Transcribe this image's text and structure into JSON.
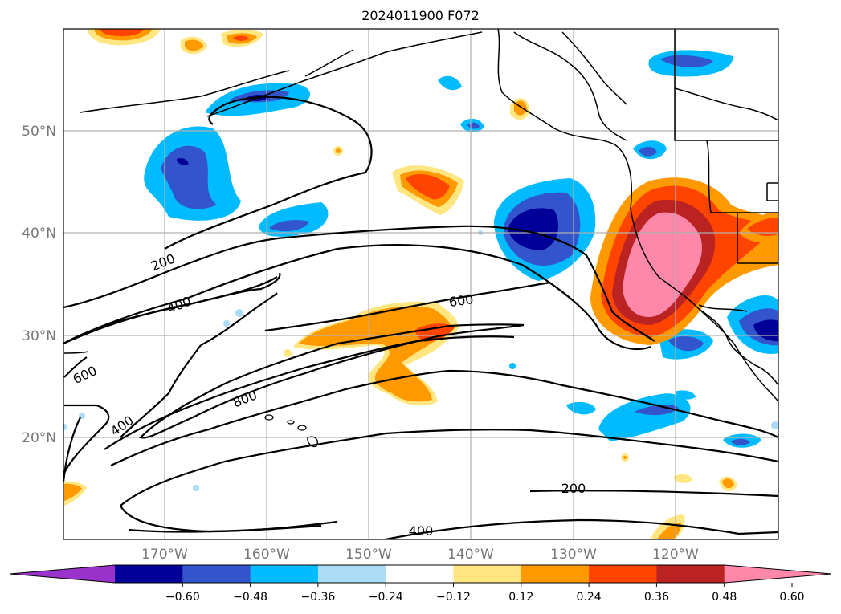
{
  "title": "2024011900 F072",
  "map": {
    "lat_labels": [
      "50°N",
      "40°N",
      "30°N",
      "20°N"
    ],
    "lon_labels": [
      "170°W",
      "160°W",
      "150°W",
      "140°W",
      "130°W",
      "120°W"
    ],
    "contour_labels": [
      "200",
      "400",
      "600",
      "800",
      "400",
      "600",
      "200",
      "400"
    ]
  },
  "colorbar": {
    "colors": [
      "#9933cc",
      "#000099",
      "#3355cc",
      "#00bbff",
      "#aaddf5",
      "#ffffff",
      "#ffe680",
      "#ff9900",
      "#ff4400",
      "#bb2222",
      "#ff88aa"
    ],
    "ticks": [
      "−0.60",
      "−0.48",
      "−0.36",
      "−0.24",
      "−0.12",
      "0.12",
      "0.24",
      "0.36",
      "0.48",
      "0.60"
    ]
  }
}
